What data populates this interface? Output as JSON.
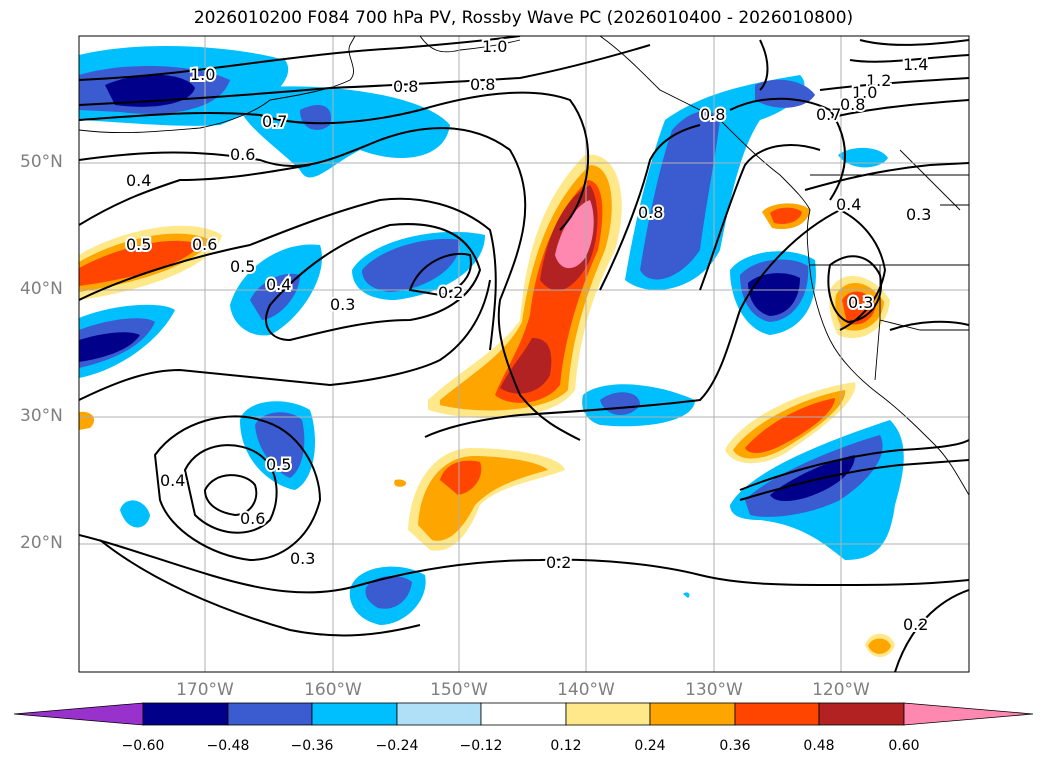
{
  "title": "2026010200 F084 700 hPa PV, Rossby Wave PC (2026010400 - 2026010800)",
  "lat_labels": [
    "50°N",
    "40°N",
    "30°N",
    "20°N"
  ],
  "lon_labels": [
    "170°W",
    "160°W",
    "150°W",
    "140°W",
    "130°W",
    "120°W"
  ],
  "colorbar": {
    "ticks": [
      "−0.60",
      "−0.48",
      "−0.36",
      "−0.24",
      "−0.12",
      "0.12",
      "0.24",
      "0.36",
      "0.48",
      "0.60"
    ],
    "colors": [
      "#9932cc",
      "#00008b",
      "#3b5bd0",
      "#00bfff",
      "#b0e0f8",
      "#ffffff",
      "#ffe88a",
      "#ffa500",
      "#ff4500",
      "#b22222",
      "#ff88b0"
    ]
  },
  "contour_labels": [
    "1.0",
    "1.0",
    "0.8",
    "0.8",
    "0.7",
    "0.6",
    "0.4",
    "0.5",
    "0.6",
    "0.5",
    "0.4",
    "0.3",
    "0.2",
    "0.8",
    "1.4",
    "1.2",
    "1.0",
    "0.8",
    "0.7",
    "0.8",
    "0.4",
    "0.3",
    "0.3",
    "0.4",
    "0.5",
    "0.6",
    "0.3",
    "0.2",
    "0.2"
  ]
}
